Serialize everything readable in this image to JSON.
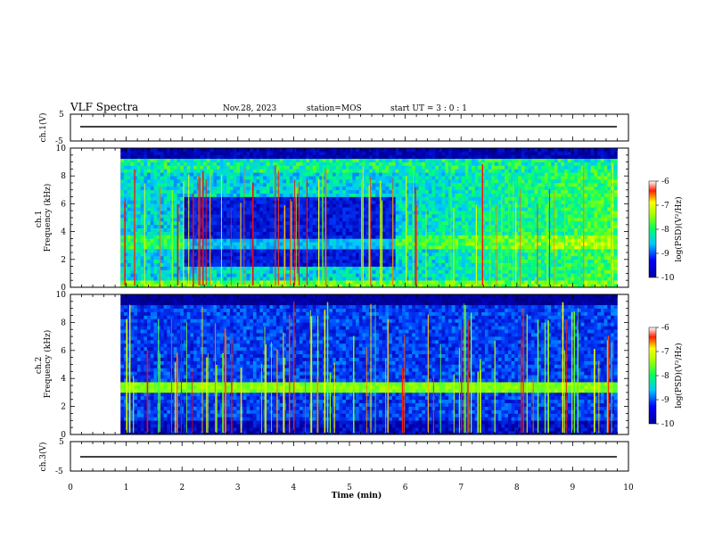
{
  "header": {
    "title": "VLF Spectra",
    "date": "Nov.28, 2023",
    "station": "station=MOS",
    "start_ut": "start UT =  3 : 0  : 1"
  },
  "chart_data": [
    {
      "type": "line",
      "panel": "ch1-waveform",
      "ylabel": "ch.1(V)",
      "yticks": [
        "5",
        "-5"
      ],
      "ylim": [
        -5,
        5
      ],
      "xlim": [
        0,
        10
      ],
      "trace_level_V": 0
    },
    {
      "type": "heatmap",
      "panel": "ch1-spectrogram",
      "ylabel": "ch.1\nFrequency (kHz)",
      "ylim": [
        0,
        10
      ],
      "xlim": [
        0,
        10
      ],
      "yticks": [
        "0",
        "2",
        "4",
        "6",
        "8",
        "10"
      ],
      "colorbar": {
        "label": "log(PSD)(V²/Hz)",
        "ticks": [
          "-6",
          "-7",
          "-8",
          "-9",
          "-10"
        ],
        "range": [
          -10,
          -6
        ]
      }
    },
    {
      "type": "heatmap",
      "panel": "ch2-spectrogram",
      "ylabel": "ch.2\nFrequency (kHz)",
      "ylim": [
        0,
        10
      ],
      "xlim": [
        0,
        10
      ],
      "yticks": [
        "0",
        "2",
        "4",
        "6",
        "8",
        "10"
      ],
      "colorbar": {
        "label": "log(PSD)(V²/Hz)",
        "ticks": [
          "-6",
          "-7",
          "-8",
          "-9",
          "-10"
        ],
        "range": [
          -10,
          -6
        ]
      }
    },
    {
      "type": "line",
      "panel": "ch3-waveform",
      "ylabel": "ch.3(V)",
      "yticks": [
        "5",
        "-5"
      ],
      "ylim": [
        -5,
        5
      ],
      "xlim": [
        0,
        10
      ],
      "trace_level_V": 0
    }
  ],
  "xaxis": {
    "label": "Time (min)",
    "ticks": [
      "0",
      "1",
      "2",
      "3",
      "4",
      "5",
      "6",
      "7",
      "8",
      "9",
      "10"
    ]
  }
}
